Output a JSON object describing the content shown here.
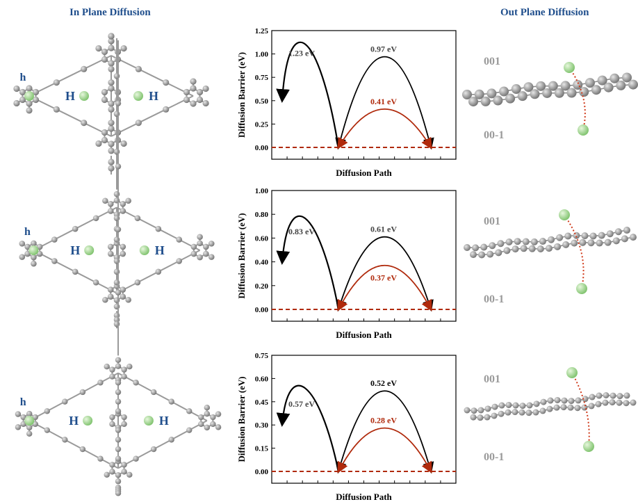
{
  "headings": {
    "left": "In Plane Diffusion",
    "right": "Out Plane Diffusion"
  },
  "structure_labels": {
    "small_h": "h",
    "big_h": "H"
  },
  "out_plane_labels": {
    "top": "001",
    "bottom": "00-1"
  },
  "colors": {
    "heading": "#1f4e8c",
    "carbon_atom": "#8a8a8a",
    "lithium_atom": "#8fce7c",
    "label_blue": "#1f4e8c",
    "barrier_black": "#000000",
    "barrier_red": "#b02a0c",
    "baseline": "#b02a0c",
    "layer_label": "#9a9a9a"
  },
  "chart_data": [
    {
      "type": "line",
      "title": "",
      "xlabel": "Diffusion Path",
      "ylabel": "Diffusion Barrier  (eV)",
      "ylim": [
        0,
        1.25
      ],
      "yticks": [
        "0.00",
        "0.25",
        "0.50",
        "0.75",
        "1.00",
        "1.25"
      ],
      "series": [
        {
          "label": "1.23 eV",
          "value": 1.23,
          "color": "#000000"
        },
        {
          "label": "0.97 eV",
          "value": 0.97,
          "color": "#000000"
        },
        {
          "label": "0.41 eV",
          "value": 0.41,
          "color": "#b02a0c"
        }
      ]
    },
    {
      "type": "line",
      "title": "",
      "xlabel": "Diffusion Path",
      "ylabel": "Diffusion Barrier  (eV)",
      "ylim": [
        0,
        1.0
      ],
      "yticks": [
        "0.00",
        "0.20",
        "0.40",
        "0.60",
        "0.80",
        "1.00"
      ],
      "series": [
        {
          "label": "0.83 eV",
          "value": 0.83,
          "color": "#000000"
        },
        {
          "label": "0.61 eV",
          "value": 0.61,
          "color": "#000000"
        },
        {
          "label": "0.37 eV",
          "value": 0.37,
          "color": "#b02a0c"
        }
      ]
    },
    {
      "type": "line",
      "title": "",
      "xlabel": "Diffusion Path",
      "ylabel": "Diffusion Barrier  (eV)",
      "ylim": [
        0,
        0.75
      ],
      "yticks": [
        "0.00",
        "0.15",
        "0.30",
        "0.45",
        "0.60",
        "0.75"
      ],
      "series": [
        {
          "label": "0.57 eV",
          "value": 0.57,
          "color": "#000000"
        },
        {
          "label": "0.52 eV",
          "value": 0.52,
          "color": "#000000"
        },
        {
          "label": "0.28 eV",
          "value": 0.28,
          "color": "#b02a0c"
        }
      ]
    }
  ]
}
